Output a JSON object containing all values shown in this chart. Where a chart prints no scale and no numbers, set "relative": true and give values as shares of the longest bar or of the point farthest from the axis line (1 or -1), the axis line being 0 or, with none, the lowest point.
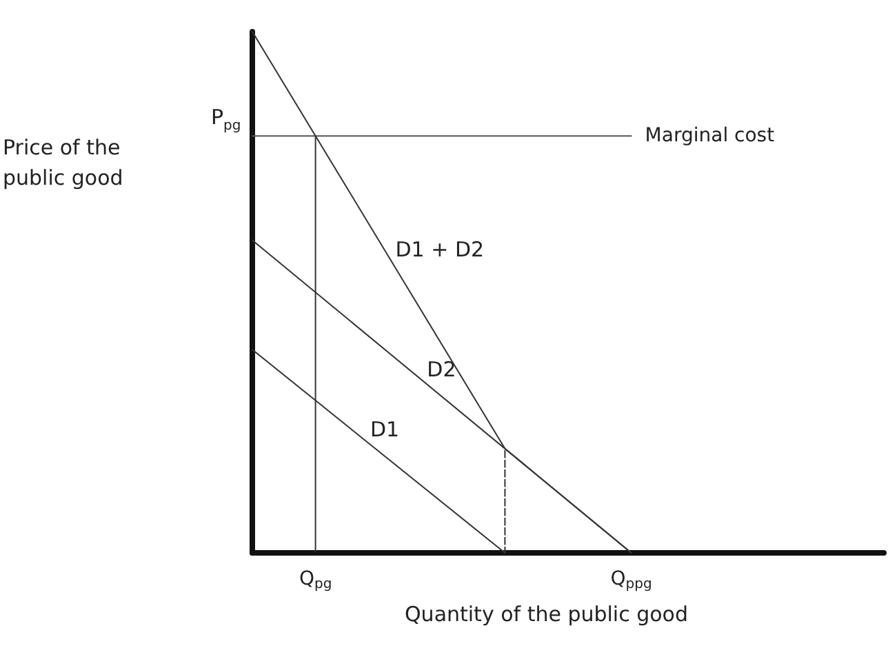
{
  "chart_data": {
    "type": "line",
    "relative": true,
    "xlabel": "Quantity of the public good",
    "categories": [
      null,
      null,
      "Q$_{pg}$",
      null,
      null,
      null,
      null,
      null,
      null,
      null,
      null,
      null,
      "Q$_{ppg}$",
      null,
      null,
      null,
      null,
      null,
      null,
      null,
      null
    ],
    "grid": false,
    "legend": false,
    "marker": "none",
    "series": [
      {
        "name": "Marginal cost",
        "color": "#555555",
        "values": [
          0.8,
          null,
          null,
          null,
          null,
          null,
          null,
          null,
          null,
          null,
          null,
          null,
          0.8,
          null,
          null,
          null,
          null,
          null,
          null,
          null,
          null
        ]
      },
      {
        "name": "D1 + D2",
        "color": "#333333",
        "values": [
          1,
          null,
          null,
          null,
          null,
          null,
          null,
          null,
          0.2,
          null,
          null,
          null,
          0,
          null,
          null,
          null,
          null,
          null,
          null,
          null,
          null
        ]
      },
      {
        "name": "D2",
        "color": "#333333",
        "values": [
          0.6,
          null,
          null,
          null,
          null,
          null,
          null,
          null,
          null,
          null,
          null,
          null,
          0,
          null,
          null,
          null,
          null,
          null,
          null,
          null,
          null
        ]
      },
      {
        "name": "D1",
        "color": "#333333",
        "values": [
          0.39,
          null,
          null,
          null,
          null,
          null,
          null,
          null,
          0,
          null,
          null,
          null,
          null,
          null,
          null,
          null,
          null,
          null,
          null,
          null,
          null
        ]
      },
      {
        "type": "bar",
        "color": "#333333",
        "line_style": "dashed",
        "values": [
          null,
          null,
          0.8,
          null,
          null,
          null,
          null,
          null,
          null,
          null,
          null,
          null,
          null,
          null,
          null,
          null,
          null,
          null,
          null,
          null,
          null
        ]
      },
      {
        "type": "bar",
        "color": "#333333",
        "line_style": "dashed",
        "values": [
          null,
          null,
          null,
          null,
          null,
          null,
          null,
          null,
          0.2,
          null,
          null,
          null,
          null,
          null,
          null,
          null,
          null,
          null,
          null,
          null,
          null
        ]
      }
    ],
    "annotations": [
      "P$_{pg}$",
      "Price of the public good"
    ]
  }
}
